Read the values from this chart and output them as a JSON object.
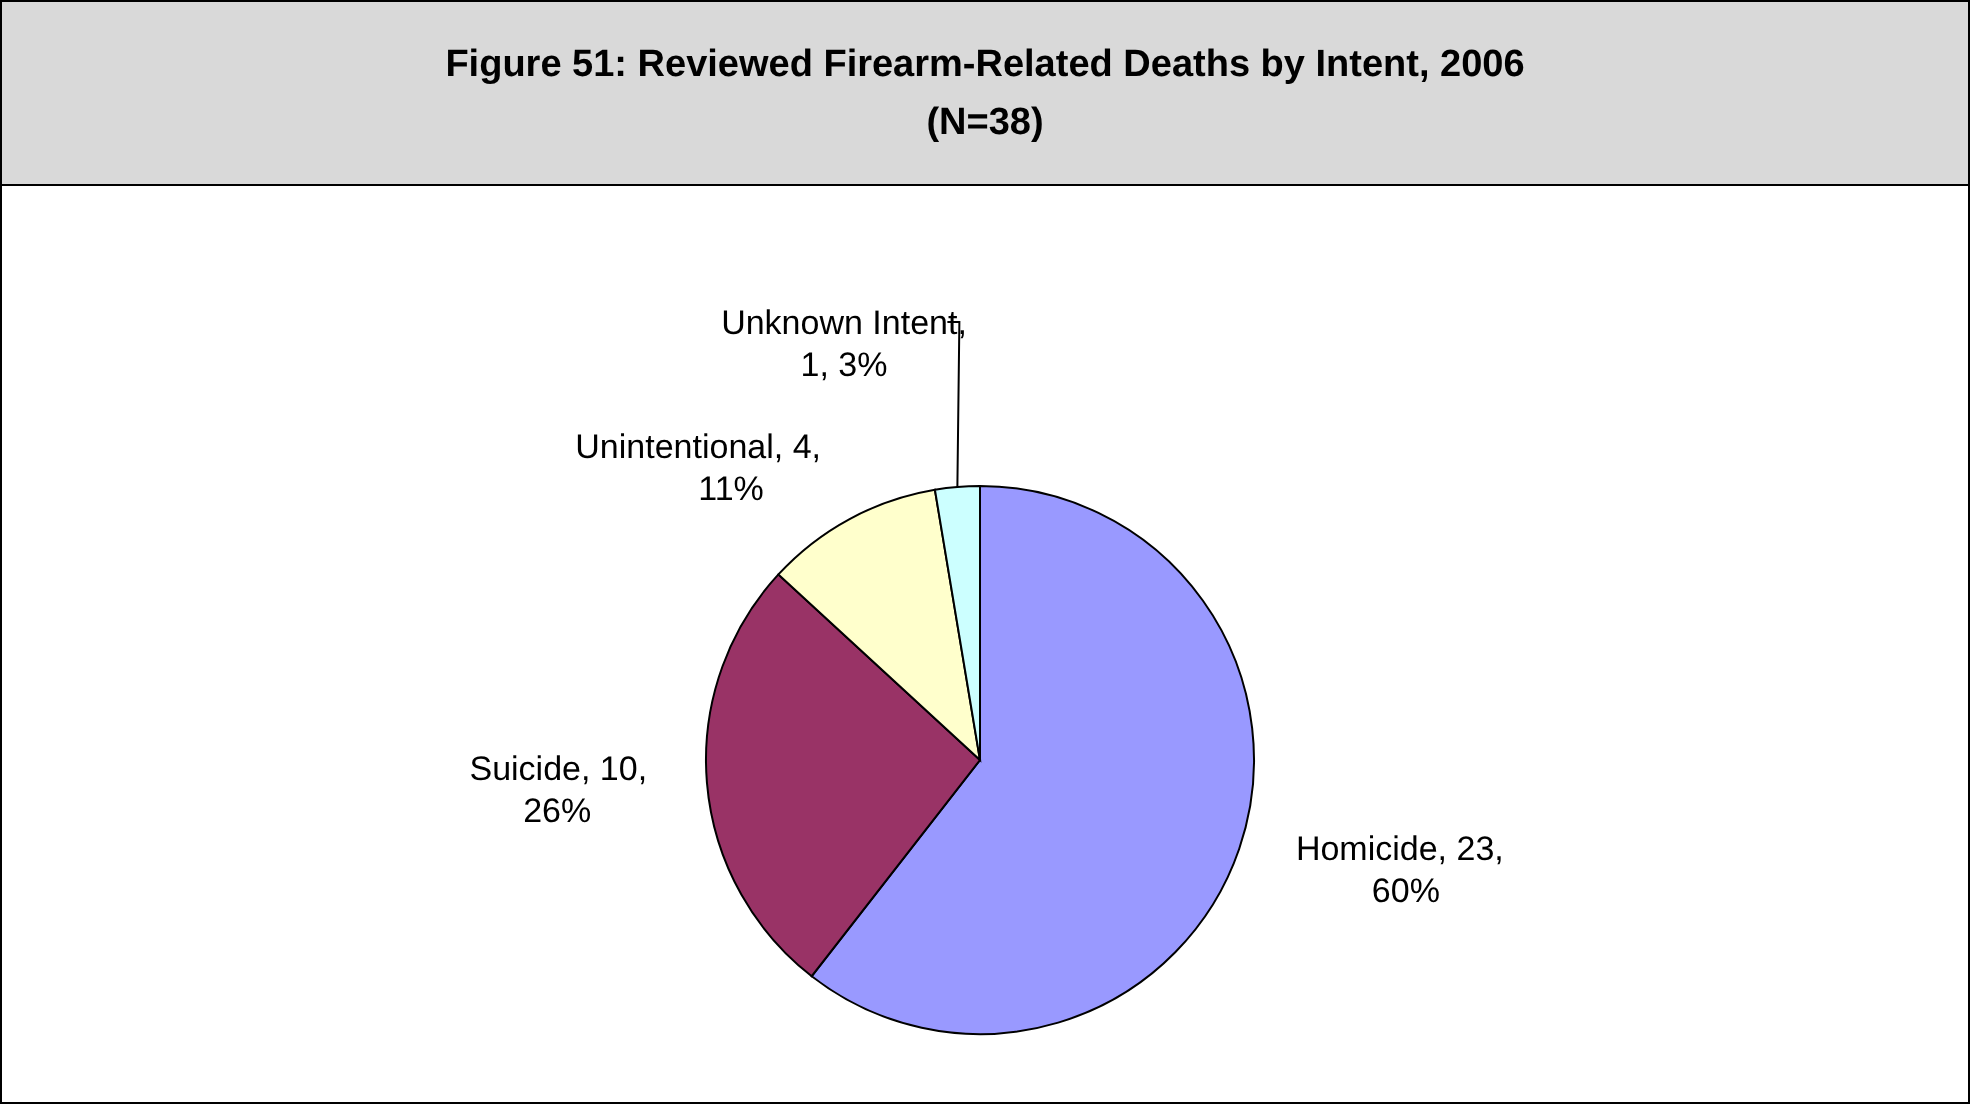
{
  "chart_data": {
    "type": "pie",
    "title": "Figure 51: Reviewed Firearm-Related Deaths by Intent, 2006 (N=38)",
    "categories": [
      "Homicide",
      "Suicide",
      "Unintentional",
      "Unknown Intent"
    ],
    "values": [
      23,
      10,
      4,
      1
    ],
    "colors": [
      "#9999ff",
      "#993366",
      "#ffffcc",
      "#ccffff"
    ],
    "value_labels": [
      ", 23, 60%",
      ", 10, 26%",
      ", 4, 11%",
      ", 1, 3%"
    ]
  }
}
